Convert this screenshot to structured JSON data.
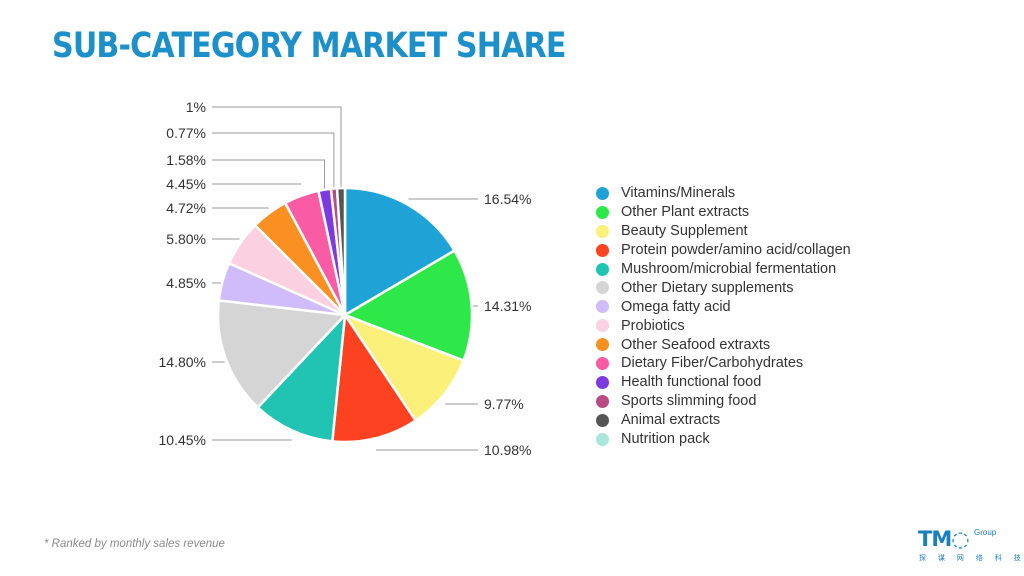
{
  "title": "SUB-CATEGORY MARKET SHARE",
  "footnote": "* Ranked by monthly sales revenue",
  "logo": {
    "main": "TM◌",
    "superscript": "Group",
    "subtitle": "探 谋 网 络 科 技"
  },
  "chart_data": {
    "type": "pie",
    "title": "SUB-CATEGORY MARKET SHARE",
    "legend_position": "right",
    "slices": [
      {
        "label": "Vitamins/Minerals",
        "value": 16.54,
        "display": "16.54%",
        "color": "#1fa3d6"
      },
      {
        "label": "Other Plant extracts",
        "value": 14.31,
        "display": "14.31%",
        "color": "#2ee84a"
      },
      {
        "label": "Beauty Supplement",
        "value": 9.77,
        "display": "9.77%",
        "color": "#fbf07a"
      },
      {
        "label": "Protein powder/amino acid/collagen",
        "value": 10.98,
        "display": "10.98%",
        "color": "#fc4221"
      },
      {
        "label": "Mushroom/microbial fermentation",
        "value": 10.45,
        "display": "10.45%",
        "color": "#21c4b2"
      },
      {
        "label": "Other Dietary supplements",
        "value": 14.8,
        "display": "14.80%",
        "color": "#d5d5d5"
      },
      {
        "label": "Omega fatty acid",
        "value": 4.85,
        "display": "4.85%",
        "color": "#cfbcf8"
      },
      {
        "label": "Probiotics",
        "value": 5.8,
        "display": "5.80%",
        "color": "#fbd0e1"
      },
      {
        "label": "Other Seafood extraxts",
        "value": 4.72,
        "display": "4.72%",
        "color": "#fb9022"
      },
      {
        "label": "Dietary Fiber/Carbohydrates",
        "value": 4.45,
        "display": "4.45%",
        "color": "#f95ba5"
      },
      {
        "label": "Health functional food",
        "value": 1.58,
        "display": "1.58%",
        "color": "#7c3ae0"
      },
      {
        "label": "Sports slimming food",
        "value": 0.77,
        "display": "0.77%",
        "color": "#b84c82"
      },
      {
        "label": "Animal extracts",
        "value": 1.0,
        "display": "1%",
        "color": "#555555"
      },
      {
        "label": "Nutrition pack",
        "value": 0.0,
        "display": "",
        "color": "#a9e7dd"
      }
    ]
  }
}
